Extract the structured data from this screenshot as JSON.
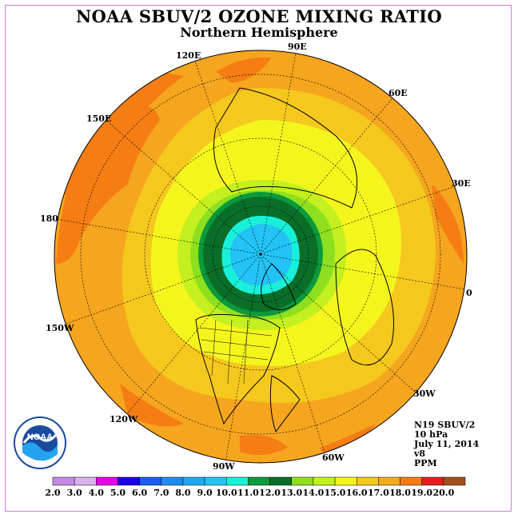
{
  "title": "NOAA SBUV/2 OZONE MIXING RATIO",
  "subtitle": "Northern Hemisphere",
  "longitude_labels": {
    "lon_90e": "90E",
    "lon_60e": "60E",
    "lon_30e": "30E",
    "lon_0": "0",
    "lon_30w": "30W",
    "lon_60w": "60W",
    "lon_90w": "90W",
    "lon_120w": "120W",
    "lon_150w": "150W",
    "lon_180": "180",
    "lon_150e": "150E",
    "lon_120e": "120E"
  },
  "info": {
    "satellite": "N19 SBUV/2",
    "level": "10 hPa",
    "date": "July 11, 2014",
    "version": "v8",
    "units": "PPM"
  },
  "colorbar": {
    "labels": [
      "2.0",
      "3.0",
      "4.0",
      "5.0",
      "6.0",
      "7.0",
      "8.0",
      "9.0",
      "10.0",
      "11.0",
      "12.0",
      "13.0",
      "14.0",
      "15.0",
      "16.0",
      "17.0",
      "18.0",
      "19.0",
      "20.0"
    ],
    "colors": [
      "#c38ae8",
      "#d9b3f0",
      "#e600e6",
      "#1a00e6",
      "#1a5cf0",
      "#1e8cf0",
      "#1ea8f0",
      "#23c3f5",
      "#19f0d9",
      "#0a9a3c",
      "#0a6e28",
      "#8ee01e",
      "#c3f01e",
      "#f5f51e",
      "#f5c81e",
      "#f5aa1e",
      "#f57d14",
      "#e61e1e",
      "#a0501e"
    ]
  },
  "colors": {
    "ring_outer": "#f5a51e",
    "ring_mid": "#f5c81e",
    "yellow": "#f5f51e",
    "light_green": "#c3f01e",
    "green": "#8ee01e",
    "dark_green": "#0a6e28",
    "mid_green": "#0a9a3c",
    "cyan": "#23c3f5",
    "dark_orange": "#f57d14"
  },
  "logo_text": "NOAA"
}
